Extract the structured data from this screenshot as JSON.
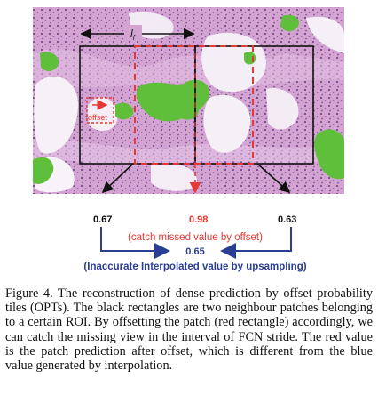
{
  "figure": {
    "stride_label": "l",
    "stride_label_sub": "f",
    "offset_label": "offset",
    "value_left": "0.67",
    "value_mid": "0.98",
    "value_right": "0.63",
    "catch_note": "(catch missed value by offset)",
    "interp_value": "0.65",
    "interp_note": "(Inaccurate Interpolated value by upsampling)",
    "colors": {
      "tissue_purple": "#a875b8",
      "tissue_pink": "#d6a6d4",
      "green_mask": "#5fbf3a",
      "offset_red": "#e53935",
      "interp_blue": "#2a3f94"
    }
  },
  "caption": {
    "label": "Figure 4.",
    "text": "The reconstruction of dense prediction by offset probability tiles (OPTs). The black rectangles are two neighbour patches belonging to a certain ROI. By offsetting the patch (red rectangle) accordingly, we can catch the missing view in the interval of FCN stride. The red value is the patch prediction after offset, which is different from the blue value generated by interpolation."
  }
}
